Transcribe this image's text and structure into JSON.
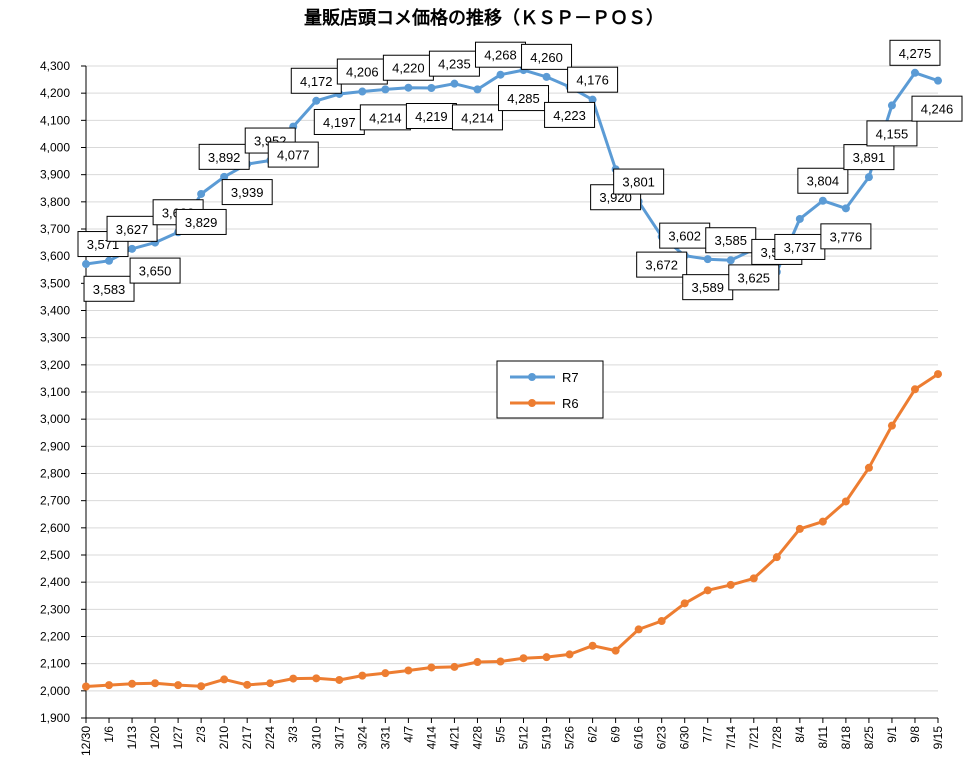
{
  "chart_data": {
    "type": "line",
    "title": "量販店頭コメ価格の推移（ＫＳＰ－ＰＯＳ）",
    "xlabel": "",
    "ylabel": "",
    "ylim": [
      1900,
      4300
    ],
    "ytick_step": 100,
    "grid": "horizontal",
    "legend_position": "center",
    "categories": [
      "12/30",
      "1/6",
      "1/13",
      "1/20",
      "1/27",
      "2/3",
      "2/10",
      "2/17",
      "2/24",
      "3/3",
      "3/10",
      "3/17",
      "3/24",
      "3/31",
      "4/7",
      "4/14",
      "4/21",
      "4/28",
      "5/5",
      "5/12",
      "5/19",
      "5/26",
      "6/2",
      "6/9",
      "6/16",
      "6/23",
      "6/30",
      "7/7",
      "7/14",
      "7/21",
      "7/28",
      "8/4",
      "8/11",
      "8/18",
      "8/25",
      "9/1",
      "9/8",
      "9/15"
    ],
    "series": [
      {
        "name": "R7",
        "color": "#5B9BD5",
        "values": [
          3571,
          3583,
          3627,
          3650,
          3688,
          3829,
          3892,
          3939,
          3952,
          4077,
          4172,
          4197,
          4206,
          4214,
          4220,
          4219,
          4235,
          4214,
          4268,
          4285,
          4260,
          4223,
          4176,
          3920,
          3801,
          3672,
          3602,
          3589,
          3585,
          3625,
          3542,
          3737,
          3804,
          3776,
          3891,
          4155,
          4275,
          4246
        ],
        "labels": [
          "3,571",
          "3,583",
          "3,627",
          "3,650",
          "3,688",
          "3,829",
          "3,892",
          "3,939",
          "3,952",
          "4,077",
          "4,172",
          "4,197",
          "4,206",
          "4,214",
          "4,220",
          "4,219",
          "4,235",
          "4,214",
          "4,268",
          "4,285",
          "4,260",
          "4,223",
          "4,176",
          "3,920",
          "3,801",
          "3,672",
          "3,602",
          "3,589",
          "3,585",
          "3,625",
          "3,542",
          "3,737",
          "3,804",
          "3,776",
          "3,891",
          "4,155",
          "4,275",
          "4,246"
        ]
      },
      {
        "name": "R6",
        "color": "#ED7D31",
        "values": [
          2016,
          2021,
          2026,
          2028,
          2021,
          2017,
          2042,
          2022,
          2028,
          2045,
          2046,
          2040,
          2056,
          2065,
          2075,
          2086,
          2088,
          2106,
          2108,
          2120,
          2124,
          2134,
          2166,
          2148,
          2226,
          2257,
          2322,
          2370,
          2390,
          2414,
          2492,
          2596,
          2623,
          2697,
          2821,
          2976,
          3110,
          3166
        ]
      }
    ]
  }
}
